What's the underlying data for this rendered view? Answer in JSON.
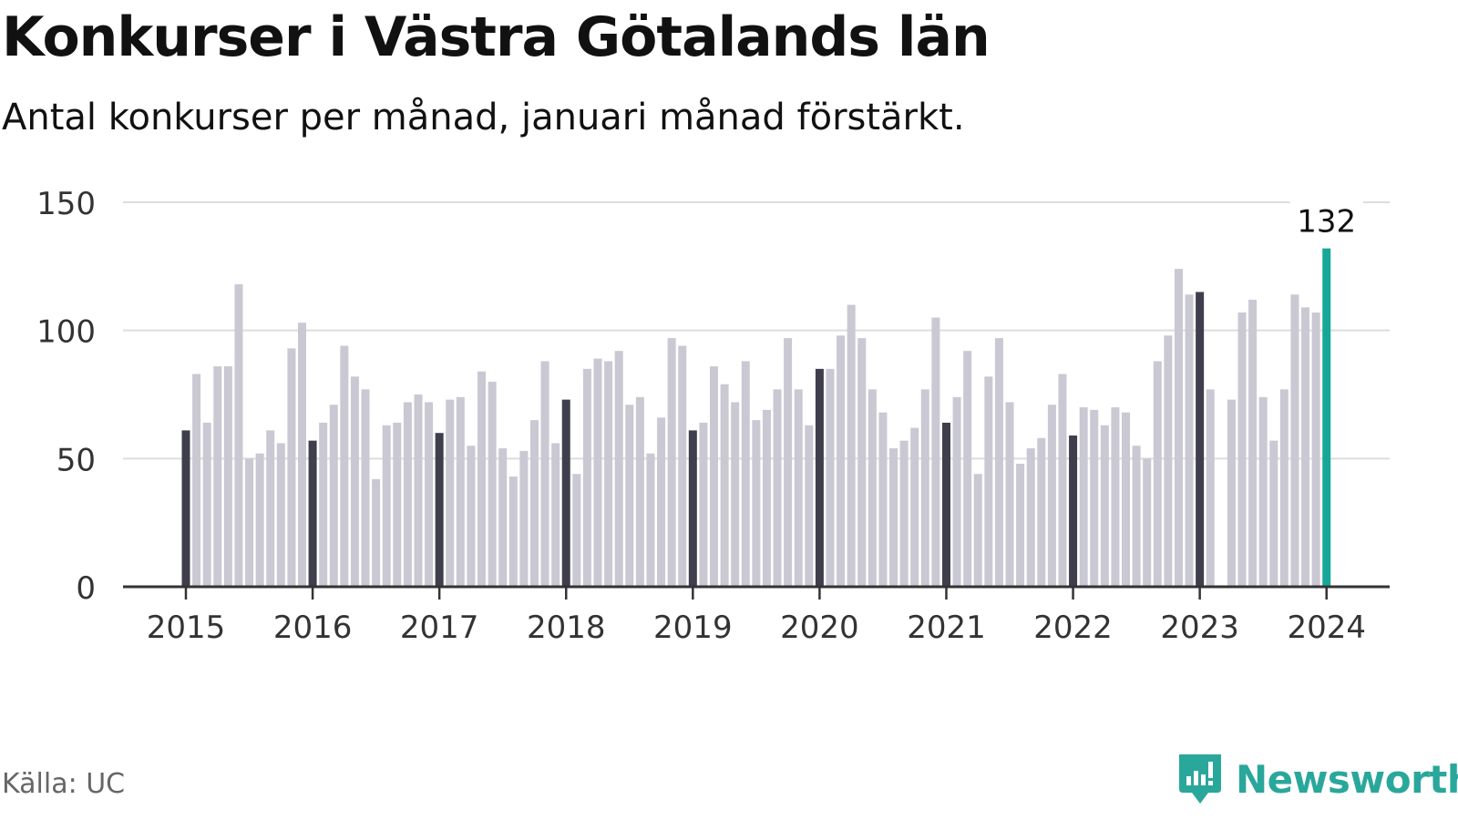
{
  "title": "Konkurser i Västra Götalands län",
  "subtitle": "Antal konkurser per månad, januari månad förstärkt.",
  "source": "Källa: UC",
  "brand": {
    "name": "Newsworthy",
    "icon": "newsworthy-logo-icon",
    "color": "#2aa79b"
  },
  "colors": {
    "regular": "#c9c8d3",
    "january": "#3f3e4d",
    "latest": "#17a799",
    "grid": "#dddddd",
    "axis": "#333333"
  },
  "chart_data": {
    "type": "bar",
    "title": "Konkurser i Västra Götalands län",
    "subtitle": "Antal konkurser per månad, januari månad förstärkt.",
    "xlabel": "",
    "ylabel": "",
    "ylim": [
      0,
      150
    ],
    "yticks": [
      0,
      50,
      100,
      150
    ],
    "xticks": [
      "2015",
      "2016",
      "2017",
      "2018",
      "2019",
      "2020",
      "2021",
      "2022",
      "2023",
      "2024"
    ],
    "start": "2015-01",
    "end": "2024-01",
    "highlight_label": "132",
    "grid": true,
    "values": [
      61,
      83,
      64,
      86,
      86,
      118,
      50,
      52,
      61,
      56,
      93,
      103,
      57,
      64,
      71,
      94,
      82,
      77,
      42,
      63,
      64,
      72,
      75,
      72,
      60,
      73,
      74,
      55,
      84,
      80,
      54,
      43,
      53,
      65,
      88,
      56,
      73,
      44,
      85,
      89,
      88,
      92,
      71,
      74,
      52,
      66,
      97,
      94,
      61,
      64,
      86,
      79,
      72,
      88,
      65,
      69,
      77,
      97,
      77,
      63,
      85,
      85,
      98,
      110,
      97,
      77,
      68,
      54,
      57,
      62,
      77,
      105,
      64,
      74,
      92,
      44,
      82,
      97,
      72,
      48,
      54,
      58,
      71,
      83,
      59,
      70,
      69,
      63,
      70,
      68,
      55,
      50,
      88,
      98,
      124,
      114,
      115,
      77,
      0,
      73,
      107,
      112,
      74,
      57,
      77,
      114,
      109,
      107,
      132
    ]
  }
}
